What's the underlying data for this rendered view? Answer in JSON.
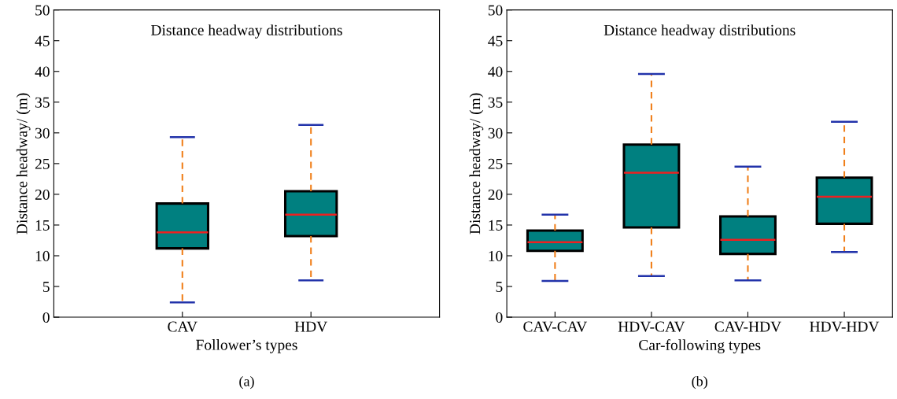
{
  "chart_data": [
    {
      "type": "box",
      "title": "Distance headway distributions",
      "xlabel": "Follower’s types",
      "ylabel": "Distance headway/ (m)",
      "categories": [
        "CAV",
        "HDV"
      ],
      "ylim": [
        0,
        50
      ],
      "yticks": [
        0,
        5,
        10,
        15,
        20,
        25,
        30,
        35,
        40,
        45,
        50
      ],
      "grid": false,
      "legend": false,
      "annotations": [
        "(a)"
      ],
      "series": [
        {
          "color": "#008080",
          "boxes": [
            {
              "low": 2.4,
              "q1": 11.2,
              "median": 13.8,
              "q3": 18.5,
              "high": 29.3
            },
            {
              "low": 6.0,
              "q1": 13.2,
              "median": 16.7,
              "q3": 20.5,
              "high": 31.3
            }
          ]
        }
      ]
    },
    {
      "type": "box",
      "title": "Distance headway distributions",
      "xlabel": "Car-following types",
      "ylabel": "Distance headway/ (m)",
      "categories": [
        "CAV-CAV",
        "HDV-CAV",
        "CAV-HDV",
        "HDV-HDV"
      ],
      "ylim": [
        0,
        50
      ],
      "yticks": [
        0,
        5,
        10,
        15,
        20,
        25,
        30,
        35,
        40,
        45,
        50
      ],
      "grid": false,
      "legend": false,
      "annotations": [
        "(b)"
      ],
      "series": [
        {
          "color": "#008080",
          "boxes": [
            {
              "low": 5.9,
              "q1": 10.8,
              "median": 12.2,
              "q3": 14.1,
              "high": 16.7
            },
            {
              "low": 6.7,
              "q1": 14.6,
              "median": 23.5,
              "q3": 28.1,
              "high": 39.6
            },
            {
              "low": 6.0,
              "q1": 10.3,
              "median": 12.6,
              "q3": 16.4,
              "high": 24.5
            },
            {
              "low": 10.6,
              "q1": 15.2,
              "median": 19.6,
              "q3": 22.7,
              "high": 31.8
            }
          ]
        }
      ]
    }
  ]
}
